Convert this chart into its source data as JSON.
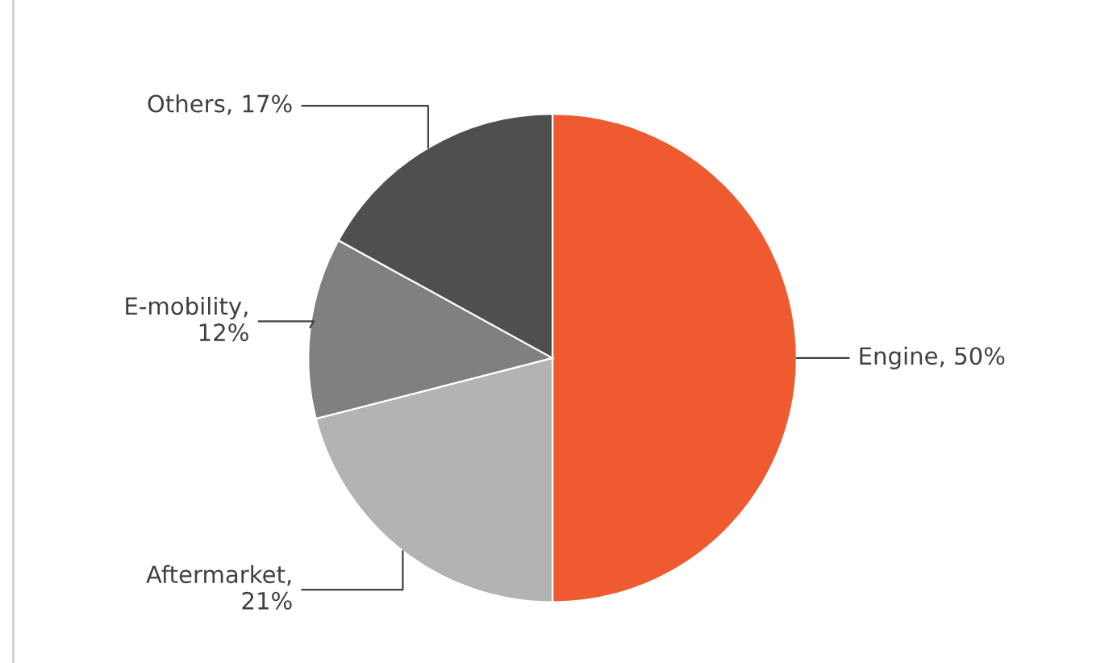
{
  "chart_data": {
    "type": "pie",
    "categories": [
      "Engine",
      "Aftermarket",
      "E-mobility",
      "Others"
    ],
    "values": [
      50,
      21,
      12,
      17
    ],
    "colors": [
      "#f05a30",
      "#b3b3b3",
      "#808080",
      "#4f4f4f"
    ],
    "value_labels": [
      ", 50%",
      ",\n21%",
      ",\n12%",
      ", 17%"
    ],
    "legend": false
  }
}
